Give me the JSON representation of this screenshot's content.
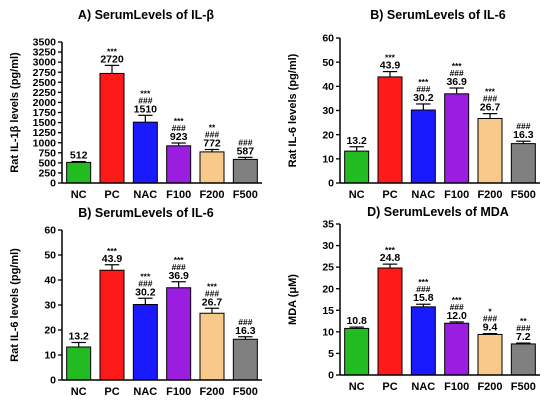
{
  "chart_data": [
    {
      "type": "bar",
      "title": "A) SerumLevels of IL-β",
      "ylabel": "Rat IL-1β levels (pg/ml)",
      "ylim": [
        0,
        3500
      ],
      "yticks": [
        0,
        250,
        500,
        750,
        1000,
        1250,
        1500,
        1750,
        2000,
        2250,
        2500,
        2750,
        3000,
        3250,
        3500
      ],
      "categories": [
        "NC",
        "PC",
        "NAC",
        "F100",
        "F200",
        "F500"
      ],
      "values": [
        512,
        2720,
        1510,
        923,
        772,
        587
      ],
      "errors": [
        20,
        200,
        170,
        70,
        60,
        50
      ],
      "value_labels": [
        "512",
        "2720",
        "1510",
        "923",
        "772",
        "587"
      ],
      "sig_vs_nc": [
        "",
        "***",
        "***",
        "***",
        "**",
        ""
      ],
      "sig_vs_pc": [
        "",
        "",
        "###",
        "###",
        "###",
        "###"
      ],
      "colors": [
        "#22bb22",
        "#ff1a1a",
        "#1a1aff",
        "#9b1ee0",
        "#f7c98a",
        "#808080"
      ]
    },
    {
      "type": "bar",
      "title": "B) SerumLevels of IL-6",
      "ylabel": "Rat IL-6 levels (pg/ml)",
      "ylim": [
        0,
        60
      ],
      "yticks": [
        0,
        10,
        20,
        30,
        40,
        50,
        60
      ],
      "categories": [
        "NC",
        "PC",
        "NAC",
        "F100",
        "F200",
        "F500"
      ],
      "values": [
        13.2,
        43.9,
        30.2,
        36.9,
        26.7,
        16.3
      ],
      "errors": [
        1.8,
        2.2,
        2.5,
        2.4,
        2.0,
        1.0
      ],
      "value_labels": [
        "13.2",
        "43.9",
        "30.2",
        "36.9",
        "26.7",
        "16.3"
      ],
      "sig_vs_nc": [
        "",
        "***",
        "***",
        "***",
        "***",
        ""
      ],
      "sig_vs_pc": [
        "",
        "",
        "###",
        "###",
        "###",
        "###"
      ],
      "colors": [
        "#22bb22",
        "#ff1a1a",
        "#1a1aff",
        "#9b1ee0",
        "#f7c98a",
        "#808080"
      ]
    },
    {
      "type": "bar",
      "title": "B) SerumLevels of IL-6",
      "ylabel": "Rat IL-6 levels (pg/ml)",
      "ylim": [
        0,
        60
      ],
      "yticks": [
        0,
        10,
        20,
        30,
        40,
        50,
        60
      ],
      "categories": [
        "NC",
        "PC",
        "NAC",
        "F100",
        "F200",
        "F500"
      ],
      "values": [
        13.2,
        43.9,
        30.2,
        36.9,
        26.7,
        16.3
      ],
      "errors": [
        1.8,
        2.2,
        2.5,
        2.4,
        2.0,
        1.0
      ],
      "value_labels": [
        "13.2",
        "43.9",
        "30.2",
        "36.9",
        "26.7",
        "16.3"
      ],
      "sig_vs_nc": [
        "",
        "***",
        "***",
        "***",
        "***",
        ""
      ],
      "sig_vs_pc": [
        "",
        "",
        "###",
        "###",
        "###",
        "###"
      ],
      "colors": [
        "#22bb22",
        "#ff1a1a",
        "#1a1aff",
        "#9b1ee0",
        "#f7c98a",
        "#808080"
      ]
    },
    {
      "type": "bar",
      "title": "D) SerumLevels of MDA",
      "ylabel": "MDA (μM)",
      "ylim": [
        0,
        35
      ],
      "yticks": [
        0,
        5,
        10,
        15,
        20,
        25,
        30,
        35
      ],
      "categories": [
        "NC",
        "PC",
        "NAC",
        "F100",
        "F200",
        "F500"
      ],
      "values": [
        10.8,
        24.8,
        15.8,
        12.0,
        9.4,
        7.2
      ],
      "errors": [
        0.3,
        0.9,
        0.6,
        0.3,
        0.2,
        0.2
      ],
      "value_labels": [
        "10.8",
        "24.8",
        "15.8",
        "12.0",
        "9.4",
        "7.2"
      ],
      "sig_vs_nc": [
        "",
        "***",
        "***",
        "***",
        "*",
        "**"
      ],
      "sig_vs_pc": [
        "",
        "",
        "###",
        "###",
        "###",
        "###"
      ],
      "colors": [
        "#22bb22",
        "#ff1a1a",
        "#1a1aff",
        "#9b1ee0",
        "#f7c98a",
        "#808080"
      ]
    }
  ]
}
